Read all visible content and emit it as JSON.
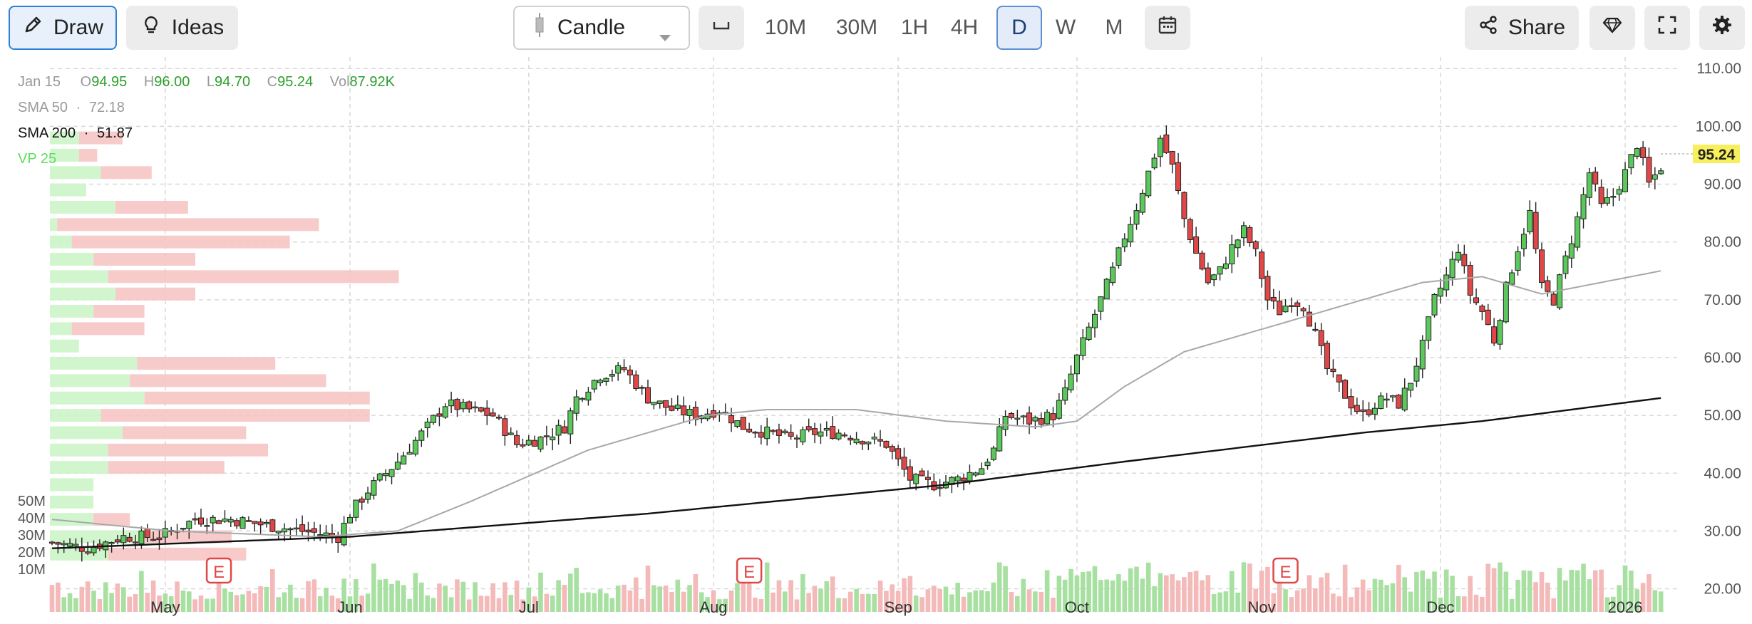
{
  "toolbar": {
    "draw_label": "Draw",
    "ideas_label": "Ideas",
    "chart_type": "Candle",
    "timeframes": [
      "10M",
      "30M",
      "1H",
      "4H",
      "D",
      "W",
      "M"
    ],
    "active_timeframe": "D",
    "share_label": "Share"
  },
  "legend": {
    "date": "Jan 15",
    "open_label": "O",
    "open": "94.95",
    "high_label": "H",
    "high": "96.00",
    "low_label": "L",
    "low": "94.70",
    "close_label": "C",
    "close": "95.24",
    "vol_label": "Vol",
    "vol": "87.92K",
    "sma50_label": "SMA 50",
    "sma50_value": "72.18",
    "sma200_label": "SMA 200",
    "sma200_value": "51.87",
    "vp_label": "VP 25"
  },
  "colors": {
    "up": "#5cc85c",
    "down": "#e04848",
    "sma50": "#a8a8a8",
    "sma200": "#111111",
    "price_tag": "#f7f05c",
    "ohlc_value": "#2c9e2c"
  },
  "chart_data": {
    "type": "candlestick",
    "y_ticks": [
      "110.00",
      "100.00",
      "90.00",
      "80.00",
      "70.00",
      "60.00",
      "50.00",
      "40.00",
      "30.00",
      "20.00"
    ],
    "volume_ticks": [
      "50M",
      "40M",
      "30M",
      "20M",
      "10M"
    ],
    "x_ticks": [
      "May",
      "Jun",
      "Jul",
      "Aug",
      "Sep",
      "Oct",
      "Nov",
      "Dec",
      "2026"
    ],
    "last_price": "95.24",
    "earnings_marker": "E",
    "ylim": [
      16,
      112
    ],
    "months": [
      {
        "label": "May",
        "day": 19
      },
      {
        "label": "Jun",
        "day": 50
      },
      {
        "label": "Jul",
        "day": 80
      },
      {
        "label": "Aug",
        "day": 111
      },
      {
        "label": "Sep",
        "day": 142
      },
      {
        "label": "Oct",
        "day": 172
      },
      {
        "label": "Nov",
        "day": 203
      },
      {
        "label": "Dec",
        "day": 233
      },
      {
        "label": "2026",
        "day": 264
      }
    ],
    "earnings_days": [
      28,
      117,
      207
    ],
    "close_anchors": [
      [
        0,
        28
      ],
      [
        6,
        27
      ],
      [
        12,
        29
      ],
      [
        18,
        29
      ],
      [
        24,
        32
      ],
      [
        30,
        32
      ],
      [
        36,
        31
      ],
      [
        42,
        30
      ],
      [
        48,
        29
      ],
      [
        50,
        33
      ],
      [
        53,
        37
      ],
      [
        58,
        42
      ],
      [
        63,
        48
      ],
      [
        66,
        52
      ],
      [
        70,
        51
      ],
      [
        74,
        50
      ],
      [
        78,
        45
      ],
      [
        82,
        46
      ],
      [
        86,
        48
      ],
      [
        88,
        53
      ],
      [
        92,
        57
      ],
      [
        96,
        58
      ],
      [
        100,
        53
      ],
      [
        104,
        51
      ],
      [
        108,
        50
      ],
      [
        112,
        51
      ],
      [
        116,
        48
      ],
      [
        120,
        47
      ],
      [
        124,
        46
      ],
      [
        128,
        47
      ],
      [
        132,
        47
      ],
      [
        136,
        46
      ],
      [
        140,
        45
      ],
      [
        144,
        39
      ],
      [
        148,
        38
      ],
      [
        152,
        39
      ],
      [
        156,
        41
      ],
      [
        158,
        44
      ],
      [
        160,
        50
      ],
      [
        164,
        49
      ],
      [
        168,
        50
      ],
      [
        170,
        54
      ],
      [
        172,
        60
      ],
      [
        174,
        65
      ],
      [
        176,
        70
      ],
      [
        178,
        75
      ],
      [
        180,
        81
      ],
      [
        182,
        86
      ],
      [
        184,
        92
      ],
      [
        186,
        98
      ],
      [
        188,
        93
      ],
      [
        190,
        84
      ],
      [
        192,
        78
      ],
      [
        194,
        73
      ],
      [
        196,
        75
      ],
      [
        198,
        79
      ],
      [
        200,
        82
      ],
      [
        202,
        78
      ],
      [
        204,
        70
      ],
      [
        206,
        68
      ],
      [
        208,
        70
      ],
      [
        210,
        69
      ],
      [
        212,
        64
      ],
      [
        214,
        58
      ],
      [
        216,
        55
      ],
      [
        218,
        52
      ],
      [
        220,
        50
      ],
      [
        222,
        52
      ],
      [
        224,
        53
      ],
      [
        226,
        52
      ],
      [
        228,
        56
      ],
      [
        230,
        62
      ],
      [
        232,
        70
      ],
      [
        234,
        74
      ],
      [
        236,
        79
      ],
      [
        238,
        71
      ],
      [
        240,
        68
      ],
      [
        242,
        63
      ],
      [
        244,
        72
      ],
      [
        246,
        79
      ],
      [
        248,
        85
      ],
      [
        250,
        72
      ],
      [
        252,
        70
      ],
      [
        254,
        77
      ],
      [
        256,
        84
      ],
      [
        258,
        92
      ],
      [
        260,
        86
      ],
      [
        262,
        88
      ],
      [
        264,
        92
      ],
      [
        266,
        97
      ],
      [
        268,
        90
      ],
      [
        270,
        93
      ]
    ],
    "sma50_anchors": [
      [
        0,
        32
      ],
      [
        20,
        30
      ],
      [
        45,
        29
      ],
      [
        58,
        30
      ],
      [
        70,
        35
      ],
      [
        90,
        44
      ],
      [
        110,
        50
      ],
      [
        120,
        51
      ],
      [
        135,
        51
      ],
      [
        150,
        49
      ],
      [
        165,
        48
      ],
      [
        172,
        49
      ],
      [
        180,
        55
      ],
      [
        190,
        61
      ],
      [
        200,
        64
      ],
      [
        210,
        67
      ],
      [
        220,
        70
      ],
      [
        230,
        73
      ],
      [
        240,
        74
      ],
      [
        250,
        71
      ],
      [
        260,
        73
      ],
      [
        270,
        75
      ]
    ],
    "sma200_anchors": [
      [
        0,
        27
      ],
      [
        50,
        29
      ],
      [
        100,
        33
      ],
      [
        150,
        38
      ],
      [
        180,
        42
      ],
      [
        220,
        47
      ],
      [
        240,
        49
      ],
      [
        270,
        53
      ]
    ],
    "volume_profile": [
      {
        "price": 98,
        "up": 4,
        "down": 6
      },
      {
        "price": 95,
        "up": 4,
        "down": 2.5
      },
      {
        "price": 92,
        "up": 7,
        "down": 7
      },
      {
        "price": 89,
        "up": 5,
        "down": 0
      },
      {
        "price": 86,
        "up": 9,
        "down": 10
      },
      {
        "price": 83,
        "up": 1,
        "down": 36
      },
      {
        "price": 80,
        "up": 3,
        "down": 30
      },
      {
        "price": 77,
        "up": 6,
        "down": 14
      },
      {
        "price": 74,
        "up": 8,
        "down": 40
      },
      {
        "price": 71,
        "up": 9,
        "down": 11
      },
      {
        "price": 68,
        "up": 6,
        "down": 7
      },
      {
        "price": 65,
        "up": 3,
        "down": 10
      },
      {
        "price": 62,
        "up": 4,
        "down": 0
      },
      {
        "price": 59,
        "up": 12,
        "down": 19
      },
      {
        "price": 56,
        "up": 11,
        "down": 27
      },
      {
        "price": 53,
        "up": 13,
        "down": 31
      },
      {
        "price": 50,
        "up": 7,
        "down": 37
      },
      {
        "price": 47,
        "up": 10,
        "down": 17
      },
      {
        "price": 44,
        "up": 8,
        "down": 22
      },
      {
        "price": 41,
        "up": 8,
        "down": 16
      },
      {
        "price": 38,
        "up": 6,
        "down": 0
      },
      {
        "price": 35,
        "up": 6,
        "down": 0
      },
      {
        "price": 32,
        "up": 6,
        "down": 5
      },
      {
        "price": 29,
        "up": 13,
        "down": 12
      },
      {
        "price": 26,
        "up": 8,
        "down": 19
      }
    ],
    "volume_range_M": [
      0,
      55
    ],
    "grid": true
  }
}
